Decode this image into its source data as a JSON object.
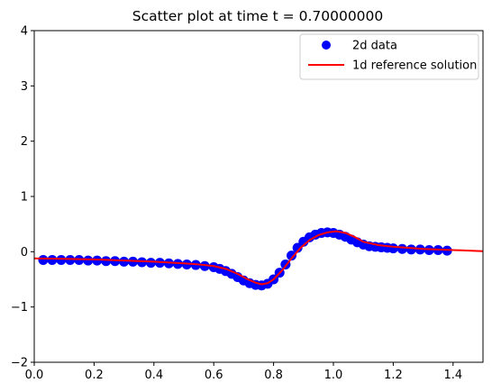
{
  "chart_data": {
    "type": "scatter",
    "title": "Scatter plot at time t =      0.70000000",
    "xlabel": "",
    "ylabel": "",
    "xlim": [
      0,
      1.5
    ],
    "ylim": [
      -2,
      4
    ],
    "xticks": [
      0.0,
      0.2,
      0.4,
      0.6,
      0.8,
      1.0,
      1.2,
      1.4
    ],
    "xtick_labels": [
      "0.0",
      "0.2",
      "0.4",
      "0.6",
      "0.8",
      "1.0",
      "1.2",
      "1.4"
    ],
    "yticks": [
      -2,
      -1,
      0,
      1,
      2,
      3,
      4
    ],
    "ytick_labels": [
      "−2",
      "−1",
      "0",
      "1",
      "2",
      "3",
      "4"
    ],
    "grid": false,
    "legend_position": "top-right",
    "series": [
      {
        "name": "2d data",
        "kind": "scatter",
        "color": "#0000ff",
        "marker": "circle",
        "x": [
          0.03,
          0.06,
          0.09,
          0.12,
          0.15,
          0.18,
          0.21,
          0.24,
          0.27,
          0.3,
          0.33,
          0.36,
          0.39,
          0.42,
          0.45,
          0.48,
          0.51,
          0.54,
          0.57,
          0.6,
          0.62,
          0.64,
          0.66,
          0.68,
          0.7,
          0.72,
          0.74,
          0.76,
          0.78,
          0.8,
          0.82,
          0.84,
          0.86,
          0.88,
          0.9,
          0.92,
          0.94,
          0.96,
          0.98,
          1.0,
          1.02,
          1.04,
          1.06,
          1.08,
          1.1,
          1.12,
          1.14,
          1.16,
          1.18,
          1.2,
          1.23,
          1.26,
          1.29,
          1.32,
          1.35,
          1.38
        ],
        "y": [
          -0.15,
          -0.15,
          -0.15,
          -0.15,
          -0.15,
          -0.16,
          -0.16,
          -0.17,
          -0.17,
          -0.18,
          -0.18,
          -0.19,
          -0.2,
          -0.2,
          -0.21,
          -0.22,
          -0.23,
          -0.24,
          -0.26,
          -0.28,
          -0.31,
          -0.35,
          -0.4,
          -0.46,
          -0.52,
          -0.57,
          -0.6,
          -0.61,
          -0.58,
          -0.5,
          -0.38,
          -0.23,
          -0.07,
          0.07,
          0.18,
          0.26,
          0.31,
          0.34,
          0.35,
          0.34,
          0.31,
          0.27,
          0.22,
          0.17,
          0.13,
          0.1,
          0.09,
          0.08,
          0.07,
          0.06,
          0.05,
          0.04,
          0.04,
          0.03,
          0.03,
          0.02
        ]
      },
      {
        "name": "1d reference solution",
        "kind": "line",
        "color": "#ff0000",
        "x": [
          0.0,
          0.1,
          0.2,
          0.3,
          0.4,
          0.5,
          0.55,
          0.6,
          0.64,
          0.68,
          0.71,
          0.74,
          0.76,
          0.78,
          0.8,
          0.83,
          0.86,
          0.89,
          0.92,
          0.95,
          0.98,
          1.01,
          1.04,
          1.07,
          1.1,
          1.15,
          1.2,
          1.25,
          1.3,
          1.4,
          1.5
        ],
        "y": [
          -0.12,
          -0.13,
          -0.14,
          -0.16,
          -0.18,
          -0.21,
          -0.23,
          -0.26,
          -0.31,
          -0.4,
          -0.49,
          -0.56,
          -0.59,
          -0.57,
          -0.5,
          -0.33,
          -0.12,
          0.07,
          0.21,
          0.3,
          0.35,
          0.37,
          0.34,
          0.27,
          0.18,
          0.12,
          0.09,
          0.07,
          0.05,
          0.03,
          0.01
        ]
      }
    ]
  }
}
